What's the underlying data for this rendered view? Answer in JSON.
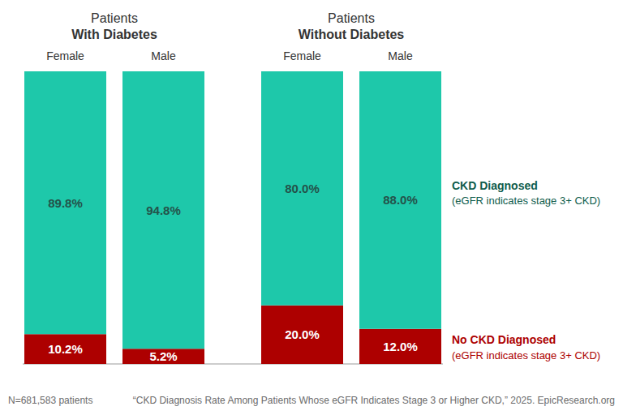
{
  "chart_data": [
    {
      "type": "bar",
      "title": "Patients\nWith Diabetes",
      "categories": [
        "Female",
        "Male"
      ],
      "stacked": true,
      "data_labels": true,
      "tick_labels": "x",
      "ylim": [
        0,
        100
      ],
      "series": [
        {
          "name": "No CKD Diagnosed",
          "note": "(eGFR indicates stage 3+ CKD)",
          "color": "#ad0000",
          "values": [
            10.2,
            5.2
          ],
          "value_labels": [
            "10.2%",
            "5.2%"
          ]
        },
        {
          "name": "CKD Diagnosed",
          "note": "(eGFR indicates stage 3+ CKD)",
          "color": "#1ec8aa",
          "values": [
            89.8,
            94.8
          ],
          "value_labels": [
            "89.8%",
            "94.8%"
          ]
        }
      ]
    },
    {
      "type": "bar",
      "title": "Patients\nWithout Diabetes",
      "categories": [
        "Female",
        "Male"
      ],
      "stacked": true,
      "data_labels": true,
      "tick_labels": "x",
      "ylim": [
        0,
        100
      ],
      "series": [
        {
          "name": "No CKD Diagnosed",
          "note": "(eGFR indicates stage 3+ CKD)",
          "color": "#ad0000",
          "values": [
            20.0,
            12.0
          ],
          "value_labels": [
            "20.0%",
            "12.0%"
          ]
        },
        {
          "name": "CKD Diagnosed",
          "note": "(eGFR indicates stage 3+ CKD)",
          "color": "#1ec8aa",
          "values": [
            80.0,
            88.0
          ],
          "value_labels": [
            "80.0%",
            "88.0%"
          ]
        }
      ]
    }
  ],
  "footnotes": [
    "N=681,583 patients",
    "“CKD Diagnosis Rate Among Patients Whose eGFR Indicates Stage 3 or Higher CKD,” 2025. EpicResearch.org"
  ]
}
